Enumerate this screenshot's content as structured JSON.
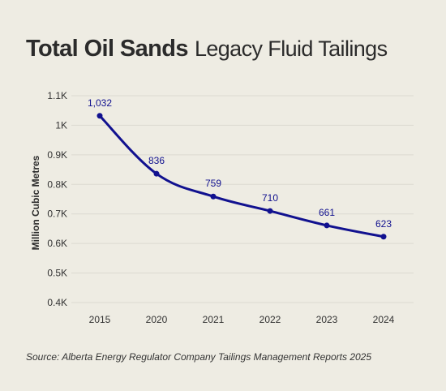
{
  "title": {
    "bold": "Total Oil Sands",
    "light": "Legacy Fluid Tailings"
  },
  "source": "Source: Alberta Energy Regulator Company Tailings Management Reports 2025",
  "colors": {
    "background": "#eeece3",
    "series": "#11118f",
    "grid": "#dcdad1",
    "text": "#333333"
  },
  "chart_data": {
    "type": "line",
    "title": "Total Oil Sands Legacy Fluid Tailings",
    "xlabel": "",
    "ylabel": "Million Cubic Metres",
    "categories": [
      "2015",
      "2020",
      "2021",
      "2022",
      "2023",
      "2024"
    ],
    "series": [
      {
        "values": [
          1032,
          836,
          759,
          710,
          661,
          623
        ],
        "labels": [
          "1,032",
          "836",
          "759",
          "710",
          "661",
          "623"
        ]
      }
    ],
    "ylim": [
      400,
      1100
    ],
    "yticks": [
      400,
      500,
      600,
      700,
      800,
      900,
      1000,
      1100
    ],
    "ytick_labels": [
      "0.4K",
      "0.5K",
      "0.6K",
      "0.7K",
      "0.8K",
      "0.9K",
      "1K",
      "1.1K"
    ],
    "grid": true,
    "legend": "none"
  }
}
